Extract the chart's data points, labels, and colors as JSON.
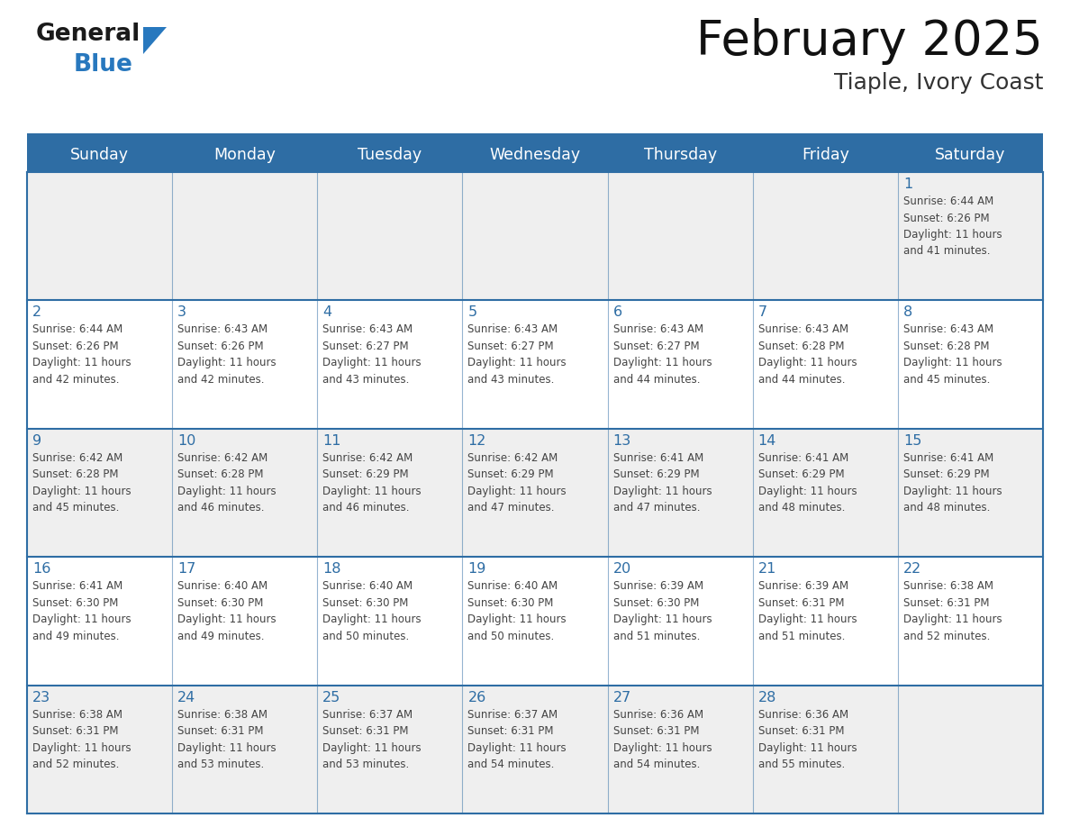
{
  "title": "February 2025",
  "subtitle": "Tiaple, Ivory Coast",
  "header_bg": "#2E6DA4",
  "header_text_color": "#FFFFFF",
  "cell_bg_even": "#EFEFEF",
  "cell_bg_odd": "#FFFFFF",
  "day_number_color": "#2E6DA4",
  "info_text_color": "#444444",
  "border_color": "#2E6DA4",
  "separator_color": "#2E6DA4",
  "days_of_week": [
    "Sunday",
    "Monday",
    "Tuesday",
    "Wednesday",
    "Thursday",
    "Friday",
    "Saturday"
  ],
  "weeks": [
    [
      {
        "day": "",
        "info": ""
      },
      {
        "day": "",
        "info": ""
      },
      {
        "day": "",
        "info": ""
      },
      {
        "day": "",
        "info": ""
      },
      {
        "day": "",
        "info": ""
      },
      {
        "day": "",
        "info": ""
      },
      {
        "day": "1",
        "info": "Sunrise: 6:44 AM\nSunset: 6:26 PM\nDaylight: 11 hours\nand 41 minutes."
      }
    ],
    [
      {
        "day": "2",
        "info": "Sunrise: 6:44 AM\nSunset: 6:26 PM\nDaylight: 11 hours\nand 42 minutes."
      },
      {
        "day": "3",
        "info": "Sunrise: 6:43 AM\nSunset: 6:26 PM\nDaylight: 11 hours\nand 42 minutes."
      },
      {
        "day": "4",
        "info": "Sunrise: 6:43 AM\nSunset: 6:27 PM\nDaylight: 11 hours\nand 43 minutes."
      },
      {
        "day": "5",
        "info": "Sunrise: 6:43 AM\nSunset: 6:27 PM\nDaylight: 11 hours\nand 43 minutes."
      },
      {
        "day": "6",
        "info": "Sunrise: 6:43 AM\nSunset: 6:27 PM\nDaylight: 11 hours\nand 44 minutes."
      },
      {
        "day": "7",
        "info": "Sunrise: 6:43 AM\nSunset: 6:28 PM\nDaylight: 11 hours\nand 44 minutes."
      },
      {
        "day": "8",
        "info": "Sunrise: 6:43 AM\nSunset: 6:28 PM\nDaylight: 11 hours\nand 45 minutes."
      }
    ],
    [
      {
        "day": "9",
        "info": "Sunrise: 6:42 AM\nSunset: 6:28 PM\nDaylight: 11 hours\nand 45 minutes."
      },
      {
        "day": "10",
        "info": "Sunrise: 6:42 AM\nSunset: 6:28 PM\nDaylight: 11 hours\nand 46 minutes."
      },
      {
        "day": "11",
        "info": "Sunrise: 6:42 AM\nSunset: 6:29 PM\nDaylight: 11 hours\nand 46 minutes."
      },
      {
        "day": "12",
        "info": "Sunrise: 6:42 AM\nSunset: 6:29 PM\nDaylight: 11 hours\nand 47 minutes."
      },
      {
        "day": "13",
        "info": "Sunrise: 6:41 AM\nSunset: 6:29 PM\nDaylight: 11 hours\nand 47 minutes."
      },
      {
        "day": "14",
        "info": "Sunrise: 6:41 AM\nSunset: 6:29 PM\nDaylight: 11 hours\nand 48 minutes."
      },
      {
        "day": "15",
        "info": "Sunrise: 6:41 AM\nSunset: 6:29 PM\nDaylight: 11 hours\nand 48 minutes."
      }
    ],
    [
      {
        "day": "16",
        "info": "Sunrise: 6:41 AM\nSunset: 6:30 PM\nDaylight: 11 hours\nand 49 minutes."
      },
      {
        "day": "17",
        "info": "Sunrise: 6:40 AM\nSunset: 6:30 PM\nDaylight: 11 hours\nand 49 minutes."
      },
      {
        "day": "18",
        "info": "Sunrise: 6:40 AM\nSunset: 6:30 PM\nDaylight: 11 hours\nand 50 minutes."
      },
      {
        "day": "19",
        "info": "Sunrise: 6:40 AM\nSunset: 6:30 PM\nDaylight: 11 hours\nand 50 minutes."
      },
      {
        "day": "20",
        "info": "Sunrise: 6:39 AM\nSunset: 6:30 PM\nDaylight: 11 hours\nand 51 minutes."
      },
      {
        "day": "21",
        "info": "Sunrise: 6:39 AM\nSunset: 6:31 PM\nDaylight: 11 hours\nand 51 minutes."
      },
      {
        "day": "22",
        "info": "Sunrise: 6:38 AM\nSunset: 6:31 PM\nDaylight: 11 hours\nand 52 minutes."
      }
    ],
    [
      {
        "day": "23",
        "info": "Sunrise: 6:38 AM\nSunset: 6:31 PM\nDaylight: 11 hours\nand 52 minutes."
      },
      {
        "day": "24",
        "info": "Sunrise: 6:38 AM\nSunset: 6:31 PM\nDaylight: 11 hours\nand 53 minutes."
      },
      {
        "day": "25",
        "info": "Sunrise: 6:37 AM\nSunset: 6:31 PM\nDaylight: 11 hours\nand 53 minutes."
      },
      {
        "day": "26",
        "info": "Sunrise: 6:37 AM\nSunset: 6:31 PM\nDaylight: 11 hours\nand 54 minutes."
      },
      {
        "day": "27",
        "info": "Sunrise: 6:36 AM\nSunset: 6:31 PM\nDaylight: 11 hours\nand 54 minutes."
      },
      {
        "day": "28",
        "info": "Sunrise: 6:36 AM\nSunset: 6:31 PM\nDaylight: 11 hours\nand 55 minutes."
      },
      {
        "day": "",
        "info": ""
      }
    ]
  ],
  "logo_general_color": "#1a1a1a",
  "logo_blue_color": "#2878BE",
  "background_color": "#FFFFFF",
  "fig_width": 11.88,
  "fig_height": 9.18,
  "fig_dpi": 100
}
